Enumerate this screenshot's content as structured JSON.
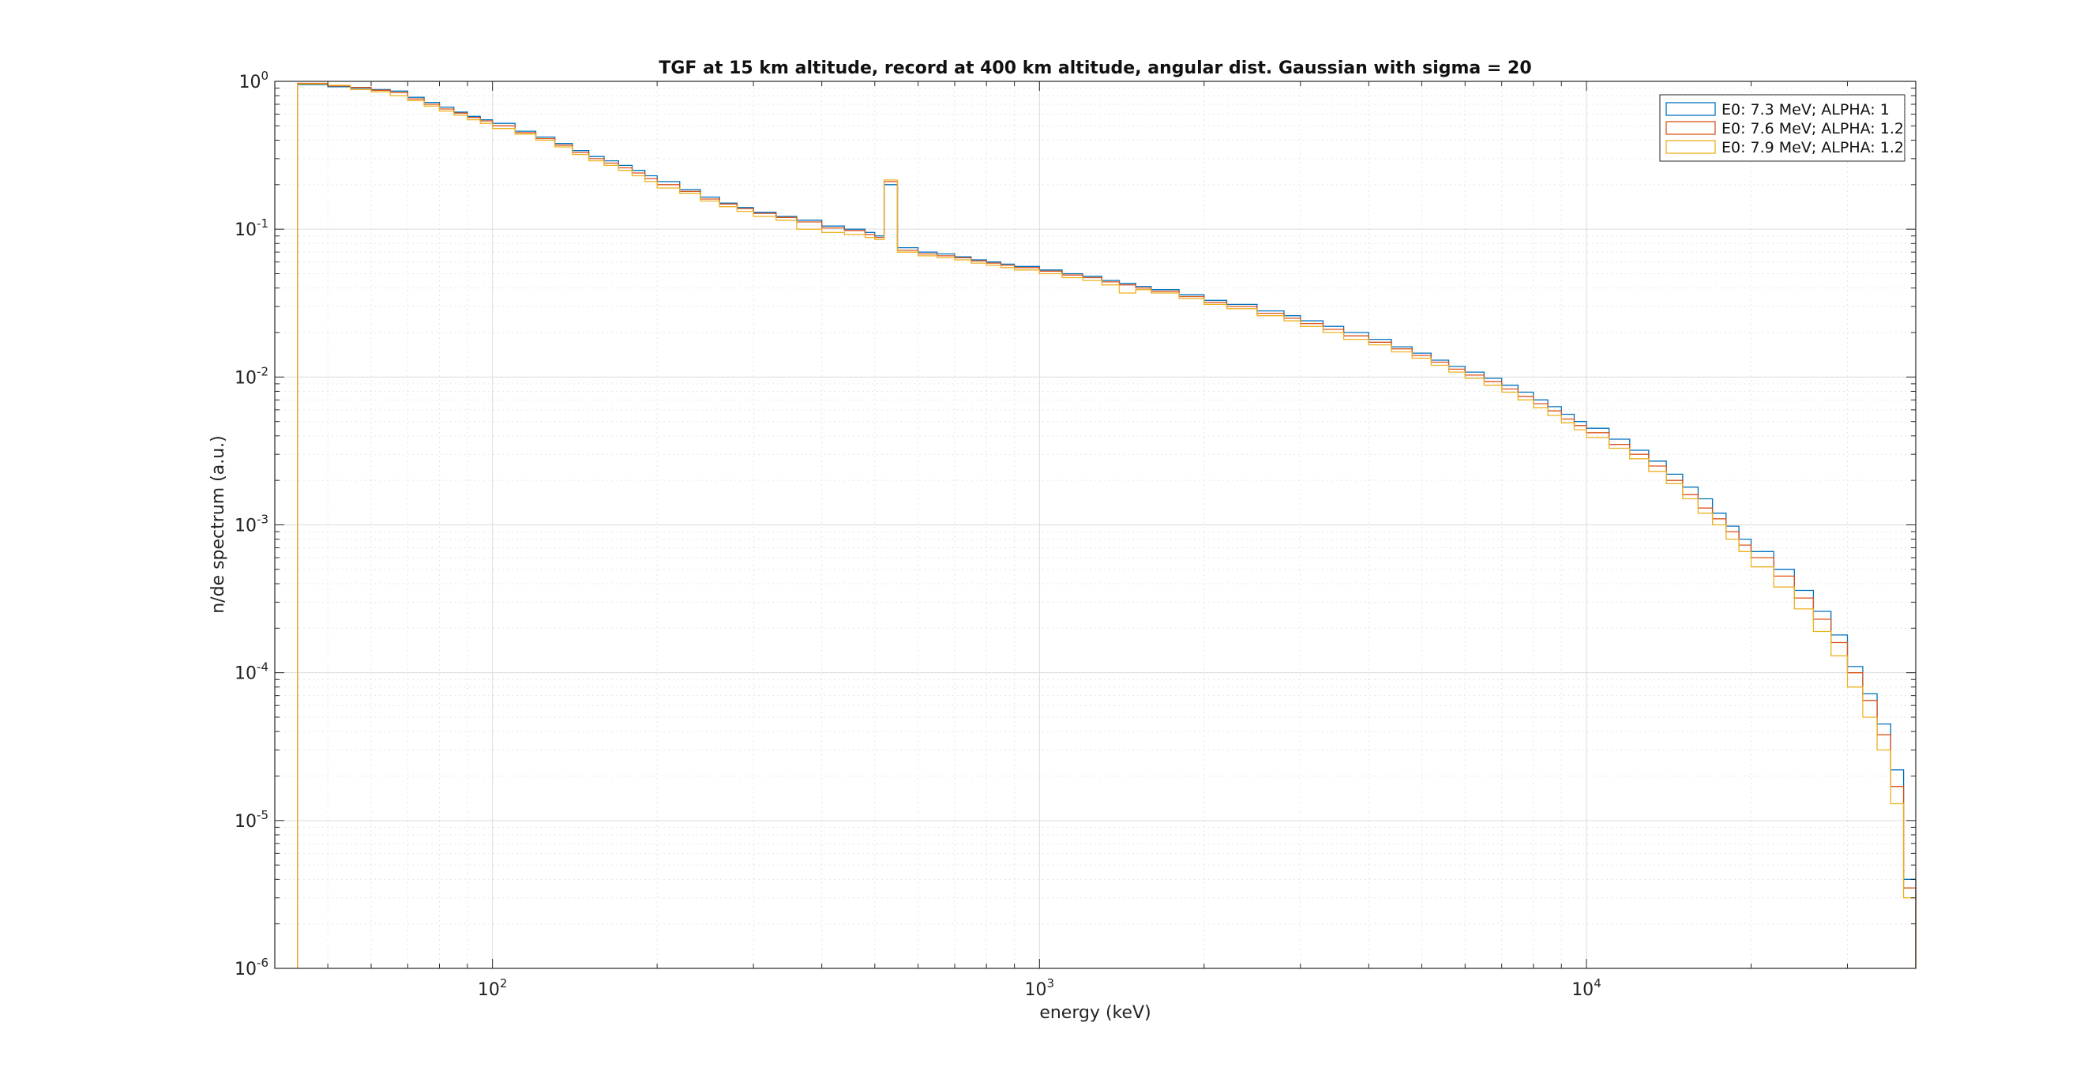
{
  "chart_data": {
    "type": "line",
    "step": true,
    "title": "TGF at 15 km altitude, record at 400 km altitude, angular dist. Gaussian with sigma = 20",
    "xlabel": "energy (keV)",
    "ylabel": "n/de spectrum (a.u.)",
    "xscale": "log",
    "yscale": "log",
    "xlim": [
      40,
      40000
    ],
    "ylim": [
      1e-06,
      1
    ],
    "x_ticks": [
      {
        "value": 100,
        "base": "10",
        "exp": "2"
      },
      {
        "value": 1000,
        "base": "10",
        "exp": "3"
      },
      {
        "value": 10000,
        "base": "10",
        "exp": "4"
      }
    ],
    "y_ticks": [
      {
        "value": 1,
        "base": "10",
        "exp": "0"
      },
      {
        "value": 0.1,
        "base": "10",
        "exp": "-1"
      },
      {
        "value": 0.01,
        "base": "10",
        "exp": "-2"
      },
      {
        "value": 0.001,
        "base": "10",
        "exp": "-3"
      },
      {
        "value": 0.0001,
        "base": "10",
        "exp": "-4"
      },
      {
        "value": 1e-05,
        "base": "10",
        "exp": "-5"
      },
      {
        "value": 1e-06,
        "base": "10",
        "exp": "-6"
      }
    ],
    "grid": true,
    "minor_grid": true,
    "legend_position": "top-right",
    "series": [
      {
        "name": "E0: 7.3 MeV; ALPHA: 1",
        "color": "#0072BD",
        "x": [
          44,
          50,
          55,
          60,
          65,
          70,
          75,
          80,
          85,
          90,
          95,
          100,
          110,
          120,
          130,
          140,
          150,
          160,
          170,
          180,
          190,
          200,
          220,
          240,
          260,
          280,
          300,
          330,
          360,
          400,
          440,
          480,
          500,
          520,
          550,
          600,
          650,
          700,
          750,
          800,
          850,
          900,
          1000,
          1100,
          1200,
          1300,
          1400,
          1500,
          1600,
          1800,
          2000,
          2200,
          2500,
          2800,
          3000,
          3300,
          3600,
          4000,
          4400,
          4800,
          5200,
          5600,
          6000,
          6500,
          7000,
          7500,
          8000,
          8500,
          9000,
          9500,
          10000,
          11000,
          12000,
          13000,
          14000,
          15000,
          16000,
          17000,
          18000,
          19000,
          20000,
          22000,
          24000,
          26000,
          28000,
          30000,
          32000,
          34000,
          36000,
          38000,
          40000
        ],
        "values": [
          0.95,
          0.92,
          0.9,
          0.88,
          0.86,
          0.78,
          0.72,
          0.67,
          0.62,
          0.58,
          0.55,
          0.52,
          0.46,
          0.42,
          0.38,
          0.34,
          0.31,
          0.29,
          0.27,
          0.25,
          0.23,
          0.21,
          0.185,
          0.165,
          0.15,
          0.14,
          0.13,
          0.122,
          0.115,
          0.105,
          0.1,
          0.095,
          0.09,
          0.2,
          0.075,
          0.07,
          0.068,
          0.065,
          0.062,
          0.06,
          0.058,
          0.056,
          0.053,
          0.05,
          0.048,
          0.045,
          0.043,
          0.041,
          0.039,
          0.036,
          0.033,
          0.031,
          0.028,
          0.026,
          0.024,
          0.022,
          0.02,
          0.018,
          0.016,
          0.0145,
          0.013,
          0.0118,
          0.0108,
          0.0098,
          0.0088,
          0.0079,
          0.007,
          0.0063,
          0.0056,
          0.005,
          0.0045,
          0.0038,
          0.0032,
          0.0027,
          0.0022,
          0.0018,
          0.0015,
          0.0012,
          0.00098,
          0.0008,
          0.00066,
          0.0005,
          0.00036,
          0.00026,
          0.00018,
          0.00011,
          7.2e-05,
          4.5e-05,
          2.2e-05,
          4e-06,
          1.2e-06
        ]
      },
      {
        "name": "E0: 7.6 MeV; ALPHA: 1.2",
        "color": "#D95319",
        "x": [
          44,
          50,
          55,
          60,
          65,
          70,
          75,
          80,
          85,
          90,
          95,
          100,
          110,
          120,
          130,
          140,
          150,
          160,
          170,
          180,
          190,
          200,
          220,
          240,
          260,
          280,
          300,
          330,
          360,
          400,
          440,
          480,
          500,
          520,
          550,
          600,
          650,
          700,
          750,
          800,
          850,
          900,
          1000,
          1100,
          1200,
          1300,
          1400,
          1500,
          1600,
          1800,
          2000,
          2200,
          2500,
          2800,
          3000,
          3300,
          3600,
          4000,
          4400,
          4800,
          5200,
          5600,
          6000,
          6500,
          7000,
          7500,
          8000,
          8500,
          9000,
          9500,
          10000,
          11000,
          12000,
          13000,
          14000,
          15000,
          16000,
          17000,
          18000,
          19000,
          20000,
          22000,
          24000,
          26000,
          28000,
          30000,
          32000,
          34000,
          36000,
          38000,
          40000
        ],
        "values": [
          0.97,
          0.93,
          0.91,
          0.87,
          0.84,
          0.76,
          0.7,
          0.65,
          0.61,
          0.57,
          0.54,
          0.5,
          0.45,
          0.41,
          0.37,
          0.33,
          0.3,
          0.28,
          0.26,
          0.24,
          0.22,
          0.2,
          0.18,
          0.16,
          0.148,
          0.138,
          0.128,
          0.12,
          0.112,
          0.102,
          0.098,
          0.092,
          0.088,
          0.21,
          0.072,
          0.068,
          0.066,
          0.064,
          0.061,
          0.059,
          0.057,
          0.055,
          0.052,
          0.049,
          0.047,
          0.044,
          0.042,
          0.04,
          0.038,
          0.035,
          0.032,
          0.03,
          0.027,
          0.025,
          0.023,
          0.021,
          0.019,
          0.0172,
          0.0155,
          0.014,
          0.0126,
          0.0113,
          0.0103,
          0.0093,
          0.0083,
          0.0074,
          0.0066,
          0.0059,
          0.0052,
          0.0047,
          0.0042,
          0.0035,
          0.003,
          0.0025,
          0.002,
          0.0016,
          0.0013,
          0.0011,
          0.0009,
          0.00073,
          0.0006,
          0.00045,
          0.00032,
          0.00023,
          0.00016,
          0.0001,
          6.5e-05,
          3.8e-05,
          1.7e-05,
          3.5e-06,
          1e-06
        ]
      },
      {
        "name": "E0: 7.9 MeV; ALPHA: 1.2",
        "color": "#EDB120",
        "x": [
          44,
          50,
          55,
          60,
          65,
          70,
          75,
          80,
          85,
          90,
          95,
          100,
          110,
          120,
          130,
          140,
          150,
          160,
          170,
          180,
          190,
          200,
          220,
          240,
          260,
          280,
          300,
          330,
          360,
          400,
          440,
          480,
          500,
          520,
          550,
          600,
          650,
          700,
          750,
          800,
          850,
          900,
          1000,
          1100,
          1200,
          1300,
          1400,
          1500,
          1600,
          1800,
          2000,
          2200,
          2500,
          2800,
          3000,
          3300,
          3600,
          4000,
          4400,
          4800,
          5200,
          5600,
          6000,
          6500,
          7000,
          7500,
          8000,
          8500,
          9000,
          9500,
          10000,
          11000,
          12000,
          13000,
          14000,
          15000,
          16000,
          17000,
          18000,
          19000,
          20000,
          22000,
          24000,
          26000,
          28000,
          30000,
          32000,
          34000,
          36000,
          38000,
          40000
        ],
        "values": [
          0.96,
          0.94,
          0.88,
          0.85,
          0.8,
          0.74,
          0.68,
          0.63,
          0.59,
          0.55,
          0.52,
          0.48,
          0.44,
          0.4,
          0.36,
          0.32,
          0.29,
          0.27,
          0.25,
          0.23,
          0.21,
          0.19,
          0.175,
          0.155,
          0.142,
          0.132,
          0.122,
          0.115,
          0.1,
          0.095,
          0.092,
          0.088,
          0.085,
          0.215,
          0.07,
          0.066,
          0.064,
          0.062,
          0.059,
          0.057,
          0.055,
          0.053,
          0.05,
          0.047,
          0.045,
          0.042,
          0.037,
          0.039,
          0.037,
          0.034,
          0.031,
          0.029,
          0.026,
          0.024,
          0.022,
          0.02,
          0.018,
          0.0165,
          0.0148,
          0.0134,
          0.012,
          0.0108,
          0.0098,
          0.0088,
          0.0079,
          0.007,
          0.0062,
          0.0055,
          0.0049,
          0.0044,
          0.0039,
          0.0033,
          0.0028,
          0.0023,
          0.0019,
          0.0015,
          0.0012,
          0.001,
          0.0008,
          0.00066,
          0.00052,
          0.00038,
          0.00027,
          0.00019,
          0.00013,
          8e-05,
          5e-05,
          3e-05,
          1.3e-05,
          3e-06,
          9e-07
        ]
      }
    ]
  }
}
